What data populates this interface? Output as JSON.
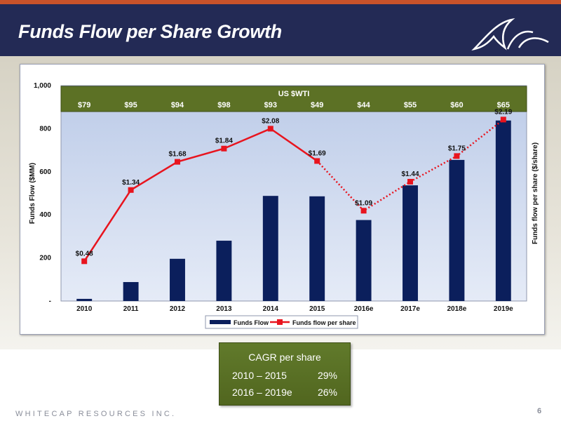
{
  "slide": {
    "title": "Funds Flow per Share Growth",
    "footer": "WHITECAP RESOURCES INC.",
    "page_number": "6"
  },
  "colors": {
    "header_bg": "#232a55",
    "bar": "#0b1f5c",
    "line": "#e8141e",
    "wti_band": "#5c7125",
    "cagr_box": "#5a6f24"
  },
  "wti": {
    "title": "US $WTI",
    "prices": [
      "$79",
      "$95",
      "$94",
      "$98",
      "$93",
      "$49",
      "$44",
      "$55",
      "$60",
      "$65"
    ]
  },
  "chart_data": {
    "type": "bar",
    "categories": [
      "2010",
      "2011",
      "2012",
      "2013",
      "2014",
      "2015",
      "2016e",
      "2017e",
      "2018e",
      "2019e"
    ],
    "ylabel": "Funds Flow ($MM)",
    "y2label": "Funds flow per share ($/share)",
    "ylim": [
      0,
      1000
    ],
    "yticks": [
      "-",
      "200",
      "400",
      "600",
      "800",
      "1,000"
    ],
    "series": [
      {
        "name": "Funds Flow",
        "type": "bar",
        "axis": "left",
        "values": [
          10,
          88,
          196,
          280,
          488,
          486,
          376,
          537,
          655,
          838
        ]
      },
      {
        "name": "Funds flow per share",
        "type": "line",
        "axis": "right",
        "values": [
          0.48,
          1.34,
          1.68,
          1.84,
          2.08,
          1.69,
          1.09,
          1.44,
          1.75,
          2.19
        ],
        "labels": [
          "$0.48",
          "$1.34",
          "$1.68",
          "$1.84",
          "$2.08",
          "$1.69",
          "$1.09",
          "$1.44",
          "$1.75",
          "$2.19"
        ],
        "solid_through": "2015",
        "dotted_after": "2015"
      }
    ],
    "legend": "bottom"
  },
  "cagr": {
    "title": "CAGR per share",
    "rows": [
      {
        "period": "2010 – 2015",
        "value": "29%"
      },
      {
        "period": "2016 – 2019e",
        "value": "26%"
      }
    ]
  }
}
